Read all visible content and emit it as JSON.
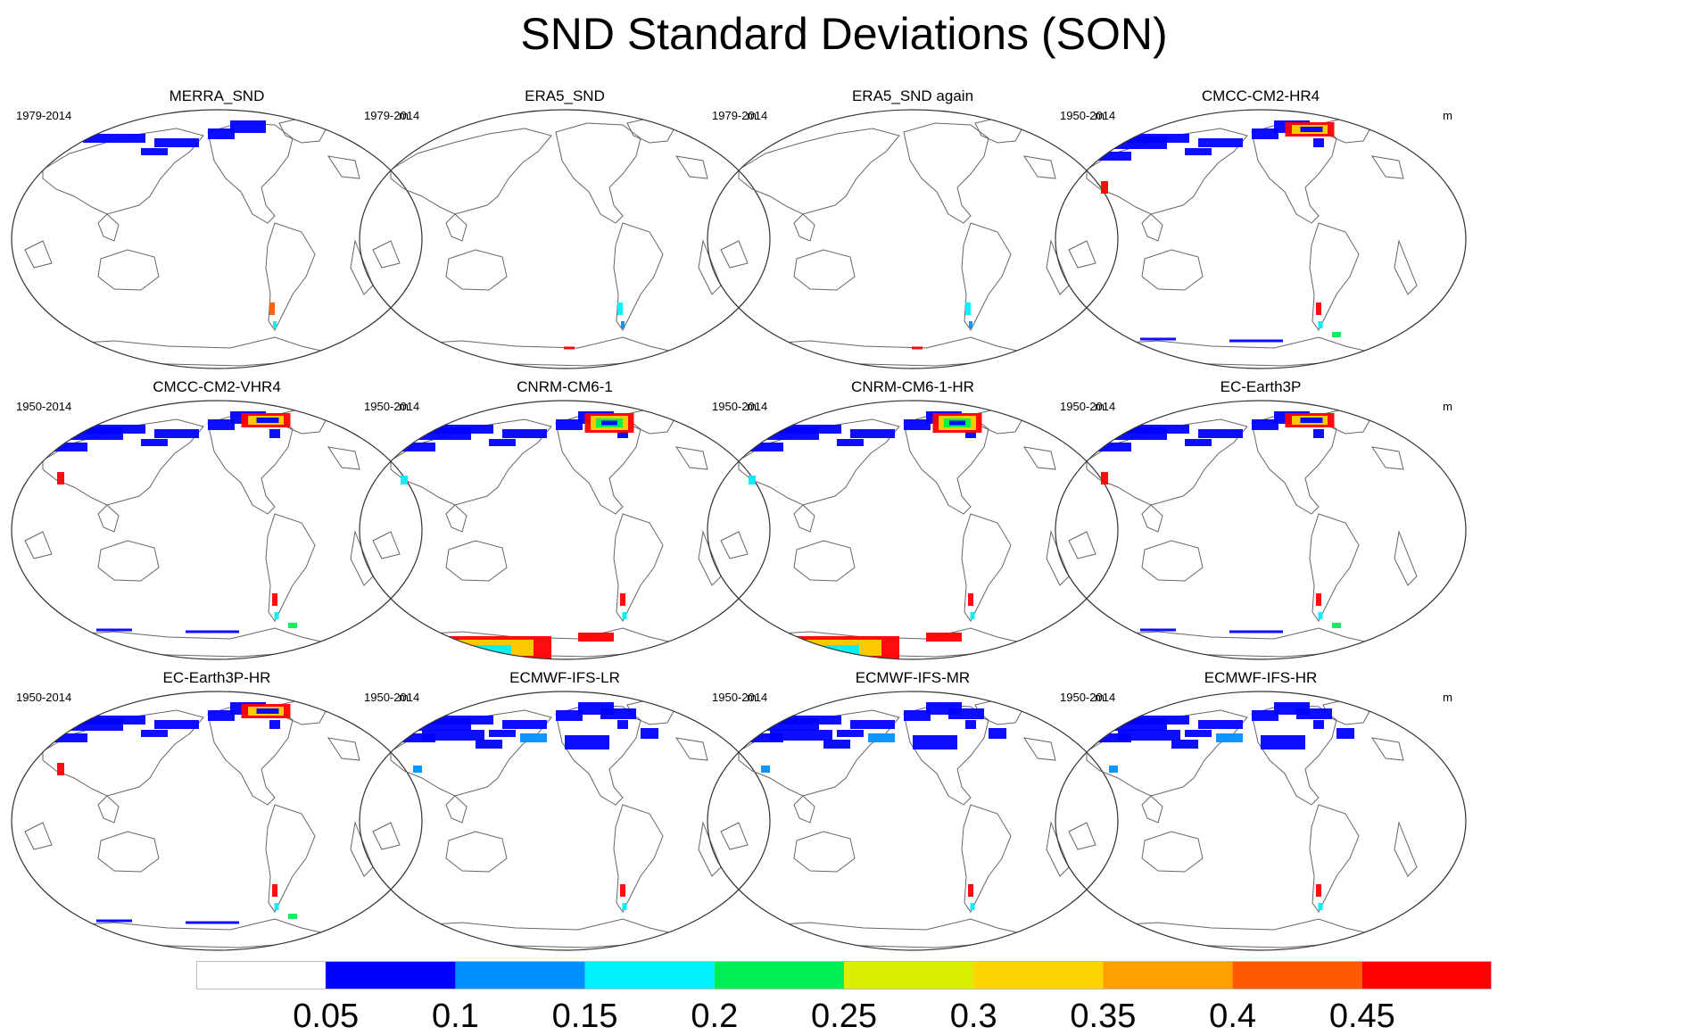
{
  "figure": {
    "title": "SND Standard Deviations (SON)",
    "units": "m"
  },
  "panels": [
    {
      "name": "MERRA_SND",
      "period": "1979-2014",
      "units": "m",
      "snow_level": "low-arctic"
    },
    {
      "name": "ERA5_SND",
      "period": "1979-2014",
      "units": "m",
      "snow_level": "minimal"
    },
    {
      "name": "ERA5_SND again",
      "period": "1979-2014",
      "units": "m",
      "snow_level": "minimal"
    },
    {
      "name": "CMCC-CM2-HR4",
      "period": "1950-2014",
      "units": "m",
      "snow_level": "moderate"
    },
    {
      "name": "CMCC-CM2-VHR4",
      "period": "1950-2014",
      "units": "m",
      "snow_level": "moderate"
    },
    {
      "name": "CNRM-CM6-1",
      "period": "1950-2014",
      "units": "m",
      "snow_level": "high-antarctic"
    },
    {
      "name": "CNRM-CM6-1-HR",
      "period": "1950-2014",
      "units": "m",
      "snow_level": "high-antarctic"
    },
    {
      "name": "EC-Earth3P",
      "period": "1950-2014",
      "units": "m",
      "snow_level": "moderate"
    },
    {
      "name": "EC-Earth3P-HR",
      "period": "1950-2014",
      "units": "m",
      "snow_level": "moderate"
    },
    {
      "name": "ECMWF-IFS-LR",
      "period": "1950-2014",
      "units": "m",
      "snow_level": "wide-blue"
    },
    {
      "name": "ECMWF-IFS-MR",
      "period": "1950-2014",
      "units": "m",
      "snow_level": "wide-blue"
    },
    {
      "name": "ECMWF-IFS-HR",
      "period": "1950-2014",
      "units": "m",
      "snow_level": "wide-blue"
    }
  ],
  "colorbar": {
    "ticks": [
      "0.05",
      "0.1",
      "0.15",
      "0.2",
      "0.25",
      "0.3",
      "0.35",
      "0.4",
      "0.45"
    ],
    "colors": [
      "#ffffff",
      "#0000ff",
      "#0090ff",
      "#00f0ff",
      "#00ee55",
      "#d8f000",
      "#ffd400",
      "#ff9f00",
      "#ff5a00",
      "#ff0000"
    ]
  }
}
